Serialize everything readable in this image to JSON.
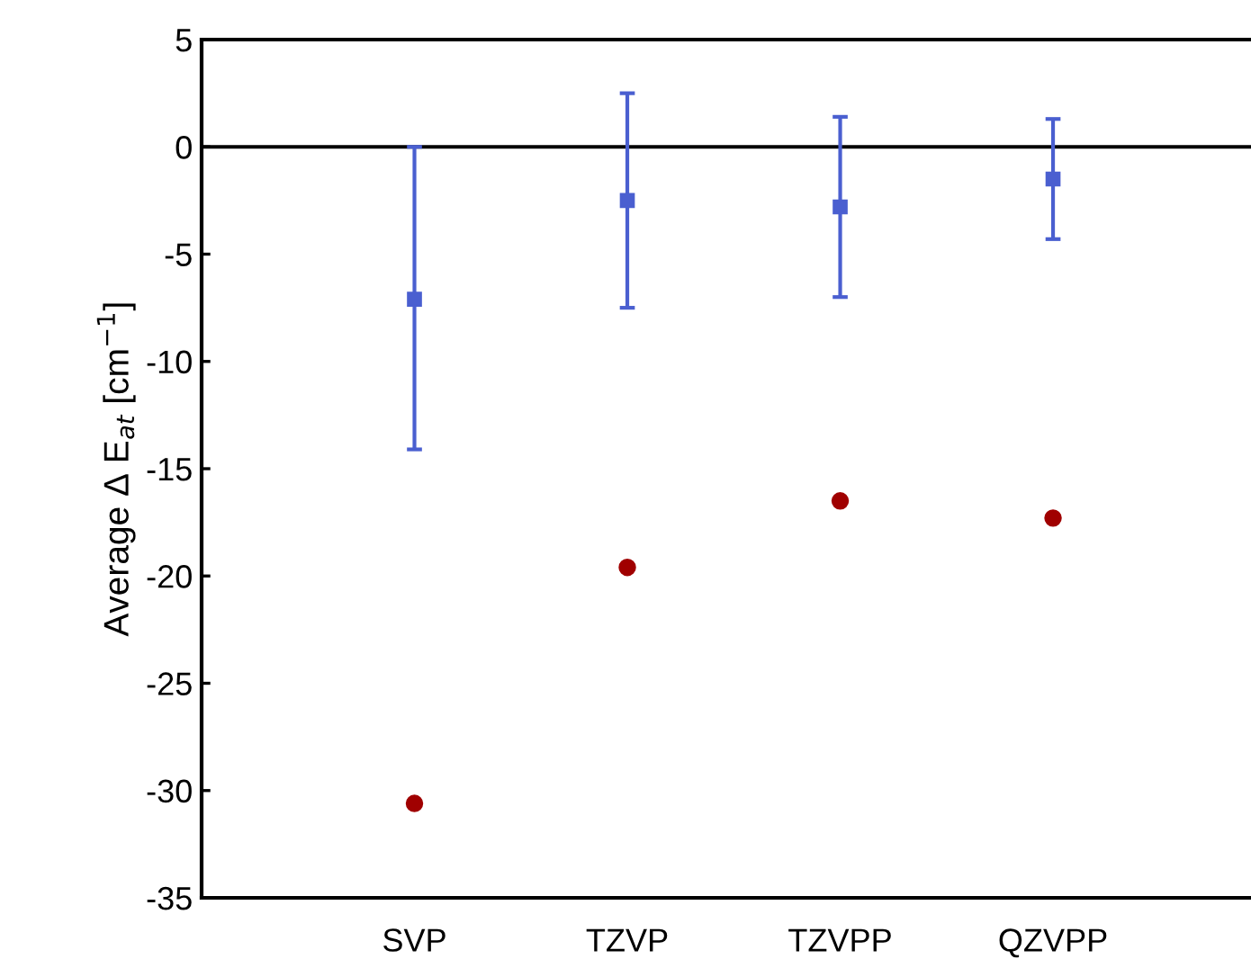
{
  "chart_data": {
    "type": "scatter",
    "ylabel": "Average Δ E$_{at}$ [cm$^{−1}$]",
    "categories": [
      "SVP",
      "TZVP",
      "TZVPP",
      "QZVPP"
    ],
    "series": [
      {
        "color": "#4a5fd0",
        "marker": "square",
        "values": [
          -7.1,
          -2.5,
          -2.8,
          -1.5
        ],
        "errors": [
          [
            -14.1,
            0
          ],
          [
            -7.5,
            2.5
          ],
          [
            -7.0,
            1.4
          ],
          [
            -4.3,
            1.3
          ]
        ]
      },
      {
        "color": "#a00000",
        "marker": "circle",
        "values": [
          -30.6,
          -19.6,
          -16.5,
          -17.3
        ]
      }
    ],
    "ylim": [
      -35,
      5
    ],
    "yticks": [
      -35,
      -30,
      -25,
      -20,
      -15,
      -10,
      -5,
      0,
      5
    ],
    "grid": false,
    "legend": false,
    "ref_lines": [
      {
        "axis": "y",
        "value": 0,
        "color": "#000000"
      }
    ]
  }
}
